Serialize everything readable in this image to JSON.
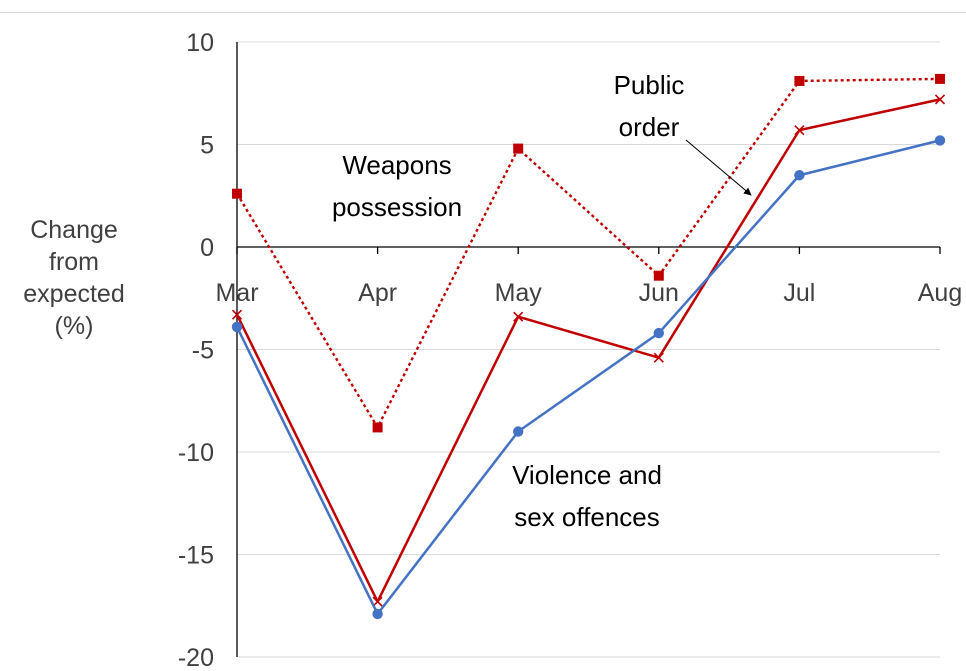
{
  "chart_data": {
    "type": "line",
    "x": [
      "Mar",
      "Apr",
      "May",
      "Jun",
      "Jul",
      "Aug"
    ],
    "ylabel_lines": [
      "Change",
      "from",
      "expected",
      "(%)"
    ],
    "ylim": [
      -20,
      10
    ],
    "yticks": [
      10,
      5,
      0,
      -5,
      -10,
      -15,
      -20
    ],
    "grid": true,
    "series": [
      {
        "name": "Weapons possession",
        "style": "dotted",
        "marker": "square",
        "color": "#c00000",
        "values": [
          2.6,
          -8.8,
          4.8,
          -1.4,
          8.1,
          8.2
        ]
      },
      {
        "name": "Public order",
        "style": "solid",
        "marker": "x",
        "color": "#c00000",
        "values": [
          -3.3,
          -17.3,
          -3.4,
          -5.4,
          5.7,
          7.2
        ]
      },
      {
        "name": "Violence and sex offences",
        "style": "solid",
        "marker": "circle",
        "color": "#4472c4",
        "values": [
          -3.9,
          -17.9,
          -9.0,
          -4.2,
          3.5,
          5.2
        ]
      }
    ],
    "annotations": {
      "weapons": [
        "Weapons",
        "possession"
      ],
      "public_order": [
        "Public",
        "order"
      ],
      "violence": [
        "Violence and",
        "sex offences"
      ]
    }
  }
}
